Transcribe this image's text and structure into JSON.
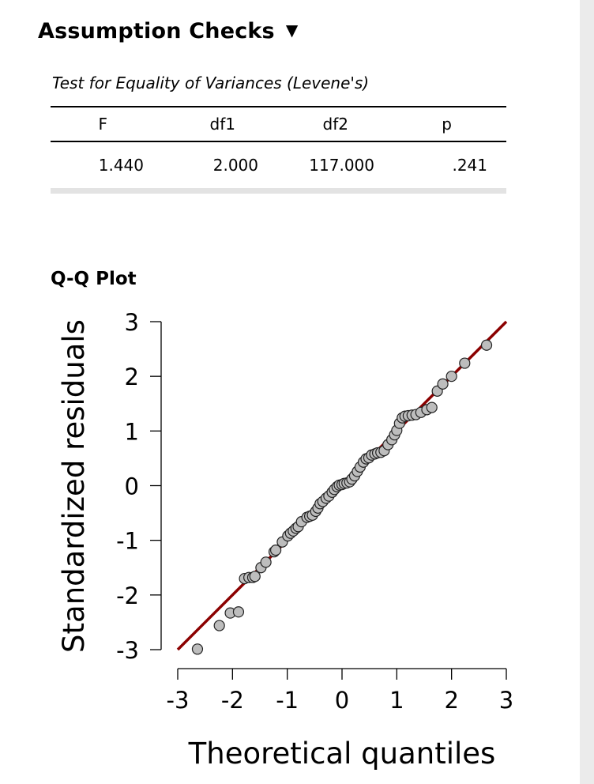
{
  "section": {
    "title": "Assumption Checks",
    "toggle_icon": "triangle-down-icon"
  },
  "levene": {
    "caption": "Test for Equality of Variances (Levene's)",
    "headers": [
      "F",
      "df1",
      "df2",
      "p"
    ],
    "row": [
      "1.440",
      "2.000",
      "117.000",
      ".241"
    ]
  },
  "chart_data": {
    "type": "scatter",
    "title": "Q-Q Plot",
    "xlabel": "Theoretical quantiles",
    "ylabel": "Standardized residuals",
    "xlim": [
      -3,
      3
    ],
    "ylim": [
      -3,
      3
    ],
    "x_ticks": [
      "-3",
      "-2",
      "-1",
      "0",
      "1",
      "2",
      "3"
    ],
    "y_ticks": [
      "-3",
      "-2",
      "-1",
      "0",
      "1",
      "2",
      "3"
    ],
    "reference_line": {
      "from": [
        -3,
        -3
      ],
      "to": [
        3,
        3
      ],
      "color": "#8b0000"
    },
    "point_color": "#bdbdbd",
    "points": [
      [
        -2.64,
        -2.99
      ],
      [
        -2.24,
        -2.56
      ],
      [
        -2.04,
        -2.33
      ],
      [
        -1.89,
        -2.31
      ],
      [
        -1.78,
        -1.7
      ],
      [
        -1.7,
        -1.68
      ],
      [
        -1.63,
        -1.68
      ],
      [
        -1.59,
        -1.66
      ],
      [
        -1.48,
        -1.5
      ],
      [
        -1.39,
        -1.4
      ],
      [
        -1.24,
        -1.21
      ],
      [
        -1.21,
        -1.18
      ],
      [
        -1.09,
        -1.03
      ],
      [
        -0.99,
        -0.92
      ],
      [
        -0.94,
        -0.87
      ],
      [
        -0.89,
        -0.83
      ],
      [
        -0.84,
        -0.78
      ],
      [
        -0.8,
        -0.75
      ],
      [
        -0.74,
        -0.66
      ],
      [
        -0.64,
        -0.58
      ],
      [
        -0.59,
        -0.56
      ],
      [
        -0.54,
        -0.54
      ],
      [
        -0.48,
        -0.47
      ],
      [
        -0.44,
        -0.41
      ],
      [
        -0.4,
        -0.33
      ],
      [
        -0.35,
        -0.29
      ],
      [
        -0.29,
        -0.23
      ],
      [
        -0.24,
        -0.19
      ],
      [
        -0.18,
        -0.12
      ],
      [
        -0.14,
        -0.07
      ],
      [
        -0.09,
        -0.02
      ],
      [
        -0.05,
        0.01
      ],
      [
        0.0,
        0.02
      ],
      [
        0.04,
        0.04
      ],
      [
        0.09,
        0.05
      ],
      [
        0.14,
        0.07
      ],
      [
        0.18,
        0.12
      ],
      [
        0.23,
        0.18
      ],
      [
        0.28,
        0.26
      ],
      [
        0.33,
        0.34
      ],
      [
        0.39,
        0.43
      ],
      [
        0.44,
        0.49
      ],
      [
        0.49,
        0.51
      ],
      [
        0.54,
        0.56
      ],
      [
        0.6,
        0.58
      ],
      [
        0.65,
        0.6
      ],
      [
        0.71,
        0.61
      ],
      [
        0.77,
        0.64
      ],
      [
        0.84,
        0.75
      ],
      [
        0.91,
        0.84
      ],
      [
        0.96,
        0.93
      ],
      [
        1.0,
        1.01
      ],
      [
        1.05,
        1.14
      ],
      [
        1.1,
        1.24
      ],
      [
        1.15,
        1.27
      ],
      [
        1.21,
        1.28
      ],
      [
        1.28,
        1.29
      ],
      [
        1.35,
        1.3
      ],
      [
        1.44,
        1.34
      ],
      [
        1.55,
        1.39
      ],
      [
        1.64,
        1.43
      ],
      [
        1.74,
        1.73
      ],
      [
        1.84,
        1.86
      ],
      [
        2.0,
        2.0
      ],
      [
        2.24,
        2.24
      ],
      [
        2.64,
        2.57
      ]
    ]
  }
}
